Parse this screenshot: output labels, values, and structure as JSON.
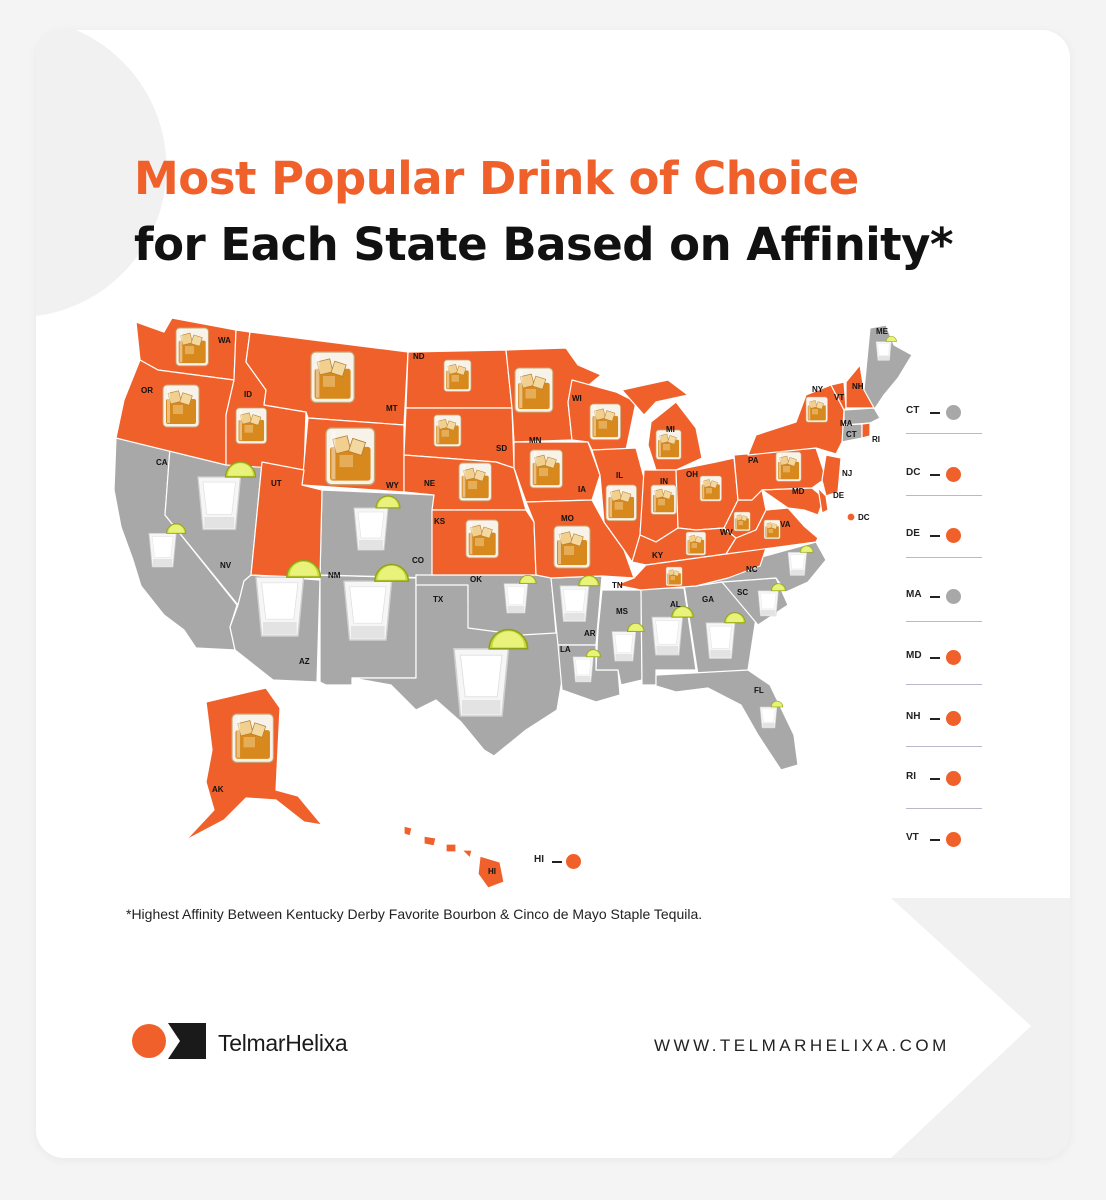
{
  "title_line1": "Most Popular Drink of Choice",
  "title_line2": "for Each State Based on Affinity*",
  "footnote": "*Highest Affinity Between Kentucky Derby Favorite Bourbon & Cinco de Mayo Staple Tequila.",
  "brand": "TelmarHelixa",
  "url": "WWW.TELMARHELIXA.COM",
  "colors": {
    "bourbon": "#f0602a",
    "tequila": "#a8a8a8",
    "title_accent": "#f0602a"
  },
  "legend": [
    {
      "state": "CT",
      "drink": "tequila"
    },
    {
      "state": "DC",
      "drink": "bourbon"
    },
    {
      "state": "DE",
      "drink": "bourbon"
    },
    {
      "state": "MA",
      "drink": "tequila"
    },
    {
      "state": "MD",
      "drink": "bourbon"
    },
    {
      "state": "NH",
      "drink": "bourbon"
    },
    {
      "state": "RI",
      "drink": "bourbon"
    },
    {
      "state": "VT",
      "drink": "bourbon"
    }
  ],
  "hi_label": "HI",
  "dc_label": "DC",
  "states": [
    {
      "label": "WA",
      "drink": "bourbon"
    },
    {
      "label": "OR",
      "drink": "bourbon"
    },
    {
      "label": "ID",
      "drink": "bourbon"
    },
    {
      "label": "MT",
      "drink": "bourbon"
    },
    {
      "label": "WY",
      "drink": "bourbon"
    },
    {
      "label": "ND",
      "drink": "bourbon"
    },
    {
      "label": "SD",
      "drink": "bourbon"
    },
    {
      "label": "NE",
      "drink": "bourbon"
    },
    {
      "label": "KS",
      "drink": "bourbon"
    },
    {
      "label": "MN",
      "drink": "bourbon"
    },
    {
      "label": "IA",
      "drink": "bourbon"
    },
    {
      "label": "MO",
      "drink": "bourbon"
    },
    {
      "label": "WI",
      "drink": "bourbon"
    },
    {
      "label": "IL",
      "drink": "bourbon"
    },
    {
      "label": "MI",
      "drink": "bourbon"
    },
    {
      "label": "IN",
      "drink": "bourbon"
    },
    {
      "label": "OH",
      "drink": "bourbon"
    },
    {
      "label": "KY",
      "drink": "bourbon"
    },
    {
      "label": "TN",
      "drink": "bourbon"
    },
    {
      "label": "WV",
      "drink": "bourbon"
    },
    {
      "label": "VA",
      "drink": "bourbon"
    },
    {
      "label": "PA",
      "drink": "bourbon"
    },
    {
      "label": "NY",
      "drink": "bourbon"
    },
    {
      "label": "NJ",
      "drink": "bourbon"
    },
    {
      "label": "MD",
      "drink": "bourbon"
    },
    {
      "label": "DE",
      "drink": "bourbon"
    },
    {
      "label": "VT",
      "drink": "bourbon"
    },
    {
      "label": "NH",
      "drink": "bourbon"
    },
    {
      "label": "RI",
      "drink": "bourbon"
    },
    {
      "label": "UT",
      "drink": "bourbon"
    },
    {
      "label": "AK",
      "drink": "bourbon"
    },
    {
      "label": "HI",
      "drink": "bourbon"
    },
    {
      "label": "CA",
      "drink": "tequila"
    },
    {
      "label": "NV",
      "drink": "tequila"
    },
    {
      "label": "AZ",
      "drink": "tequila"
    },
    {
      "label": "NM",
      "drink": "tequila"
    },
    {
      "label": "CO",
      "drink": "tequila"
    },
    {
      "label": "TX",
      "drink": "tequila"
    },
    {
      "label": "OK",
      "drink": "tequila"
    },
    {
      "label": "AR",
      "drink": "tequila"
    },
    {
      "label": "LA",
      "drink": "tequila"
    },
    {
      "label": "MS",
      "drink": "tequila"
    },
    {
      "label": "AL",
      "drink": "tequila"
    },
    {
      "label": "GA",
      "drink": "tequila"
    },
    {
      "label": "SC",
      "drink": "tequila"
    },
    {
      "label": "NC",
      "drink": "tequila"
    },
    {
      "label": "FL",
      "drink": "tequila"
    },
    {
      "label": "ME",
      "drink": "tequila"
    },
    {
      "label": "MA",
      "drink": "tequila"
    },
    {
      "label": "CT",
      "drink": "tequila"
    }
  ]
}
